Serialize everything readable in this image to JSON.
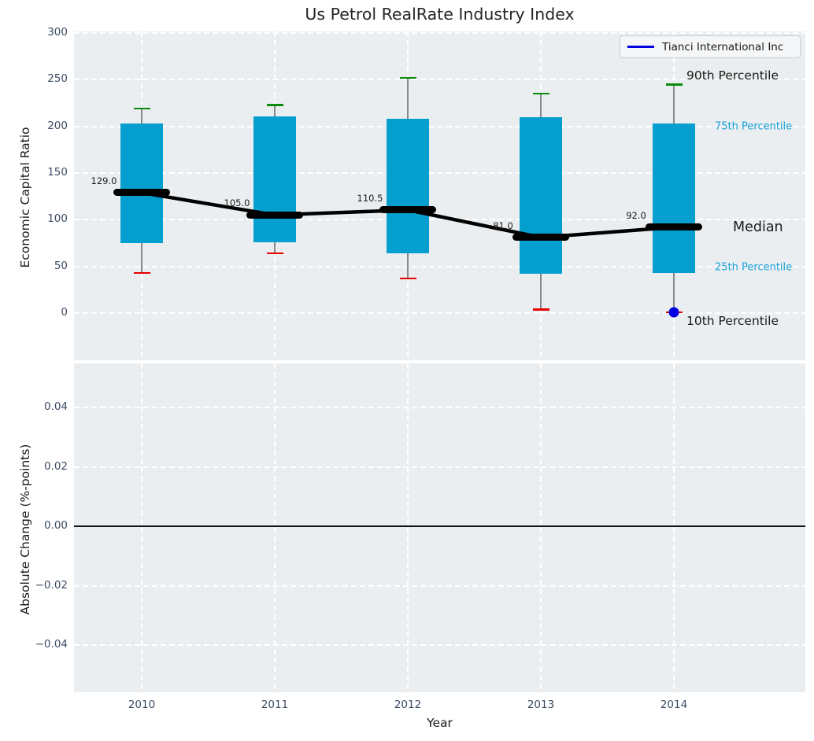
{
  "chart_data": {
    "type": "box",
    "title": "Us Petrol RealRate Industry Index",
    "xlabel": "Year",
    "categories": [
      "2010",
      "2011",
      "2012",
      "2013",
      "2014"
    ],
    "legend": {
      "label": "Tianci International Inc"
    },
    "colors": {
      "box_fill": "#049fcf",
      "p90_cap": "#0a8a0a",
      "p10_cap": "#e80000",
      "median_line": "#000000",
      "company": "#0000e0",
      "percentile_text": "#149fd6",
      "axes_bg": "#ebeef0",
      "tick_text": "#3d4c63"
    },
    "top_panel": {
      "ylabel": "Economic Capital Ratio",
      "yticks": [
        0,
        50,
        100,
        150,
        200,
        250,
        300
      ],
      "ylim": [
        -50,
        303
      ],
      "grid": true,
      "boxes": [
        {
          "year": "2010",
          "p10": 43,
          "p25": 75,
          "median": 129.0,
          "p75": 203,
          "p90": 219,
          "median_label": "129.0"
        },
        {
          "year": "2011",
          "p10": 64,
          "p25": 76,
          "median": 105.0,
          "p75": 211,
          "p90": 223,
          "median_label": "105.0"
        },
        {
          "year": "2012",
          "p10": 37,
          "p25": 64,
          "median": 110.5,
          "p75": 208,
          "p90": 252,
          "median_label": "110.5"
        },
        {
          "year": "2013",
          "p10": 4,
          "p25": 42,
          "median": 81.0,
          "p75": 210,
          "p90": 235,
          "median_label": "81.0"
        },
        {
          "year": "2014",
          "p10": 1,
          "p25": 43,
          "median": 92.0,
          "p75": 203,
          "p90": 245,
          "median_label": "92.0"
        }
      ],
      "company_point": {
        "year": "2014",
        "value": 1
      },
      "annotations": [
        {
          "text": "90th Percentile",
          "anchor": "p90",
          "style": "large-dark"
        },
        {
          "text": "75th Percentile",
          "anchor": "p75",
          "style": "small-accent"
        },
        {
          "text": "Median",
          "anchor": "median",
          "style": "xlarge-dark"
        },
        {
          "text": "25th Percentile",
          "anchor": "p25",
          "style": "small-accent"
        },
        {
          "text": "10th Percentile",
          "anchor": "p10",
          "style": "large-dark"
        }
      ]
    },
    "bottom_panel": {
      "ylabel": "Absolute Change (%-points)",
      "yticks": [
        {
          "label": "0.04",
          "value": 0.04
        },
        {
          "label": "0.02",
          "value": 0.02
        },
        {
          "label": "0.00",
          "value": 0.0
        },
        {
          "label": "−0.02",
          "value": -0.02
        },
        {
          "label": "−0.04",
          "value": -0.04
        }
      ],
      "zero_line": 0.0,
      "grid": true
    }
  }
}
